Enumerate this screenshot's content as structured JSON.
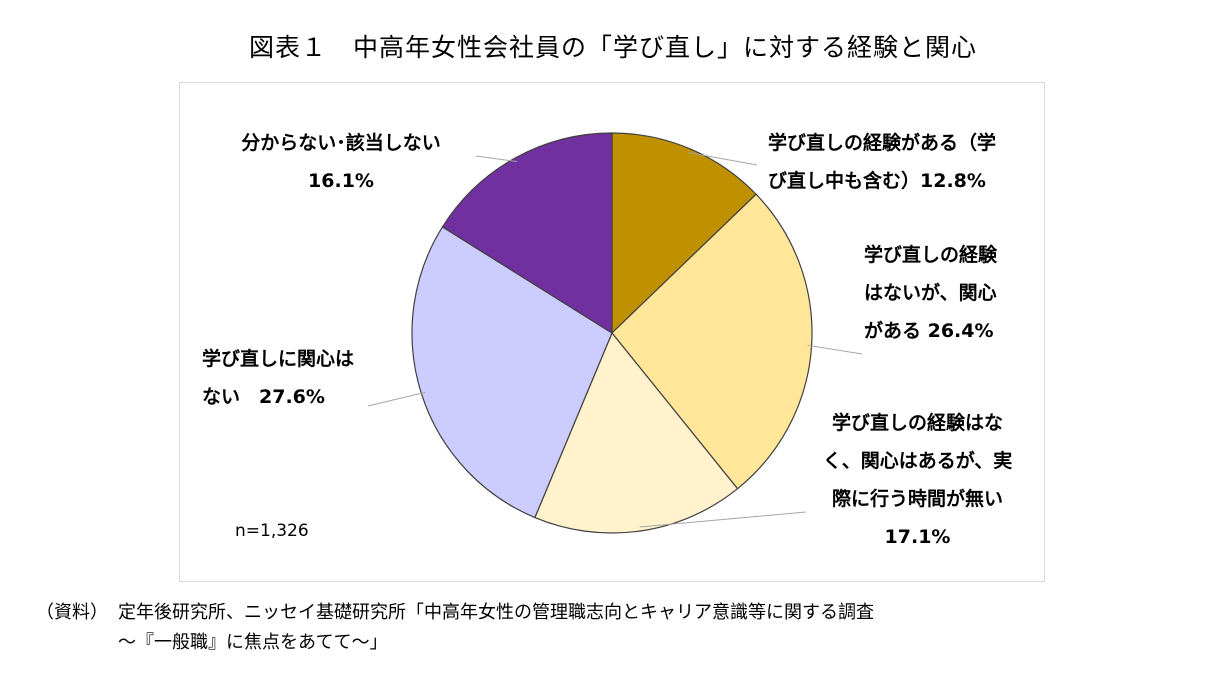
{
  "title": "図表１　中高年女性会社員の「学び直し」に対する経験と関心",
  "note": "n=1,326",
  "source": {
    "label": "（資料）",
    "line1": "定年後研究所、ニッセイ基礎研究所「中高年女性の管理職志向とキャリア意識等に関する調査",
    "line2": "～『一般職』に焦点をあてて～」"
  },
  "chart_data": {
    "type": "pie",
    "start_angle_deg": 0,
    "direction": "clockwise",
    "slices": [
      {
        "name": "学び直しの経験がある（学び直し中も含む）",
        "value": 12.8,
        "color": "#BF9000",
        "label_lines": [
          "学び直しの経験がある（学",
          "び直し中も含む）12.8%"
        ]
      },
      {
        "name": "学び直しの経験はないが、関心がある",
        "value": 26.4,
        "color": "#FFE699",
        "label_lines": [
          "学び直しの経験",
          "はないが、関心",
          "がある 26.4%"
        ]
      },
      {
        "name": "学び直しの経験はなく、関心はあるが、実際に行う時間が無い",
        "value": 17.1,
        "color": "#FFF2CC",
        "label_lines": [
          "学び直しの経験はな",
          "く、関心はあるが、実",
          "際に行う時間が無い",
          "17.1%"
        ]
      },
      {
        "name": "学び直しに関心はない",
        "value": 27.6,
        "color": "#CCCCFF",
        "label_lines": [
          "学び直しに関心は",
          "ない　27.6%"
        ]
      },
      {
        "name": "分からない・該当しない",
        "value": 16.1,
        "color": "#7030A0",
        "label_lines": [
          "分からない･該当しない",
          "16.1%"
        ]
      }
    ]
  }
}
